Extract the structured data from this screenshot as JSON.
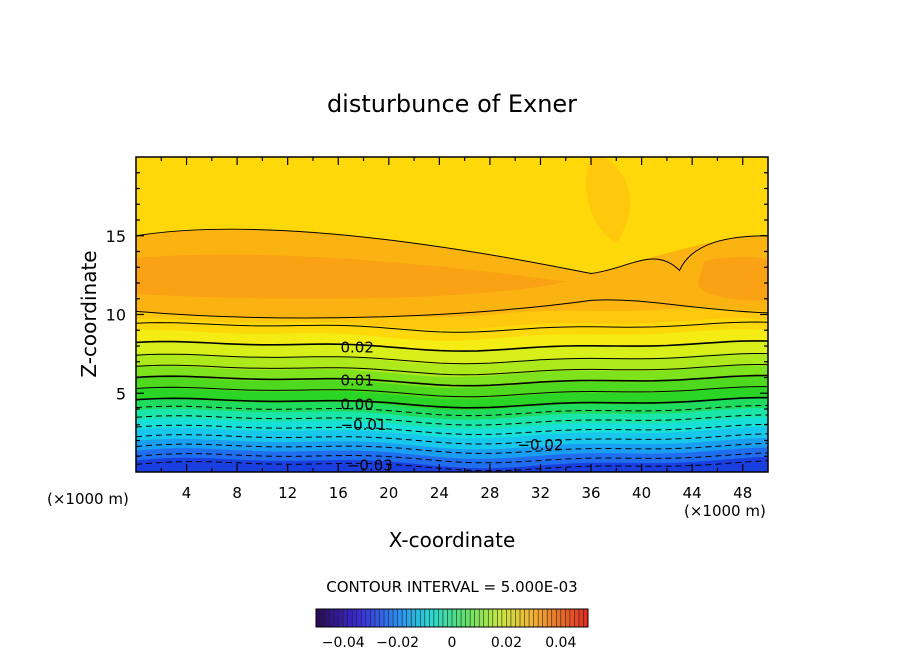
{
  "chart_data": {
    "type": "contour",
    "title": "disturbunce of Exner",
    "xlabel": "X-coordinate",
    "ylabel": "Z-coordinate",
    "x_unit": "(×1000 m)",
    "y_unit": "(×1000 m)",
    "xlim": [
      0,
      50
    ],
    "ylim": [
      0,
      20
    ],
    "x_ticks": [
      4,
      8,
      12,
      16,
      20,
      24,
      28,
      32,
      36,
      40,
      44,
      48
    ],
    "y_ticks": [
      5,
      10,
      15
    ],
    "contour_interval_text": "CONTOUR INTERVAL = 5.000E-03",
    "contour_interval": 0.005,
    "contour_labels": [
      {
        "text": "0.02",
        "x": 17.5,
        "z": 7.9,
        "value": 0.02
      },
      {
        "text": "0.01",
        "x": 17.5,
        "z": 5.8,
        "value": 0.01
      },
      {
        "text": "0.00",
        "x": 17.5,
        "z": 4.3,
        "value": 0.0
      },
      {
        "text": "−0.01",
        "x": 18.0,
        "z": 3.0,
        "value": -0.01
      },
      {
        "text": "−0.02",
        "x": 32.0,
        "z": 1.7,
        "value": -0.02
      },
      {
        "text": "−0.03",
        "x": 18.5,
        "z": 0.4,
        "value": -0.03
      }
    ],
    "colorbar": {
      "range": [
        -0.05,
        0.05
      ],
      "tick_labels": [
        "−0.04",
        "−0.02",
        "0",
        "0.02",
        "0.04"
      ],
      "tick_values": [
        -0.04,
        -0.02,
        0.0,
        0.02,
        0.04
      ]
    },
    "colors": {
      "deep_blue": "#1a4fe0",
      "cyan": "#17d8e8",
      "green": "#33d41f",
      "yellow_green": "#d8ef1a",
      "yellow": "#ffd80a",
      "orange": "#fba214"
    }
  }
}
